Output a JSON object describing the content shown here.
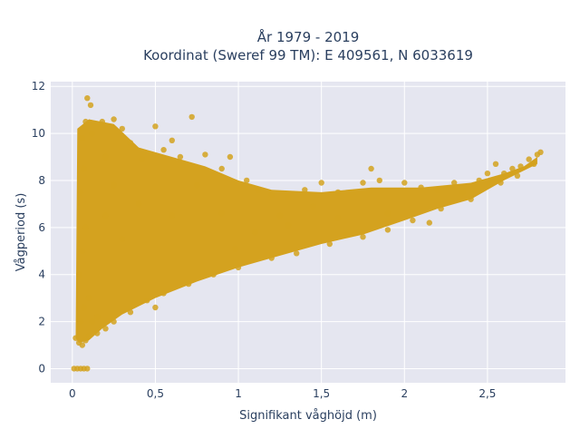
{
  "chart_data": {
    "type": "scatter",
    "title_line1": "År 1979 - 2019",
    "title_line2": "Koordinat (Sweref 99 TM): E 409561, N 6033619",
    "xlabel": "Signifikant våghöjd (m)",
    "ylabel": "Vågperiod (s)",
    "xlim": [
      -0.13,
      2.97
    ],
    "ylim": [
      -0.6,
      12.2
    ],
    "grid": true,
    "x_ticks": [
      {
        "value": 0,
        "label": "0"
      },
      {
        "value": 0.5,
        "label": "0,5"
      },
      {
        "value": 1,
        "label": "1"
      },
      {
        "value": 1.5,
        "label": "1,5"
      },
      {
        "value": 2,
        "label": "2"
      },
      {
        "value": 2.5,
        "label": "2,5"
      }
    ],
    "y_ticks": [
      {
        "value": 0,
        "label": "0"
      },
      {
        "value": 2,
        "label": "2"
      },
      {
        "value": 4,
        "label": "4"
      },
      {
        "value": 6,
        "label": "6"
      },
      {
        "value": 8,
        "label": "8"
      },
      {
        "value": 10,
        "label": "10"
      },
      {
        "value": 12,
        "label": "12"
      }
    ],
    "marker_color": "#d4a21f",
    "plot_background": "#e5e6f0",
    "series": [
      {
        "points": [
          [
            0.01,
            0
          ],
          [
            0.03,
            0
          ],
          [
            0.05,
            0
          ],
          [
            0.07,
            0
          ],
          [
            0.09,
            0
          ],
          [
            0.02,
            1.3
          ],
          [
            0.04,
            1.1
          ],
          [
            0.06,
            1.0
          ],
          [
            0.08,
            1.2
          ],
          [
            0.1,
            1.4
          ],
          [
            0.05,
            2.0
          ],
          [
            0.07,
            2.6
          ],
          [
            0.1,
            3.0
          ],
          [
            0.12,
            2.0
          ],
          [
            0.15,
            2.2
          ],
          [
            0.04,
            4.0
          ],
          [
            0.06,
            5.0
          ],
          [
            0.08,
            6.0
          ],
          [
            0.05,
            7.5
          ],
          [
            0.07,
            8.5
          ],
          [
            0.06,
            9.8
          ],
          [
            0.08,
            10.5
          ],
          [
            0.09,
            11.5
          ],
          [
            0.11,
            11.2
          ],
          [
            0.12,
            10.0
          ],
          [
            0.18,
            10.5
          ],
          [
            0.25,
            10.6
          ],
          [
            0.2,
            9.0
          ],
          [
            0.3,
            10.2
          ],
          [
            0.35,
            9.6
          ],
          [
            0.42,
            8.9
          ],
          [
            0.55,
            9.3
          ],
          [
            0.5,
            10.3
          ],
          [
            0.6,
            9.7
          ],
          [
            0.72,
            10.7
          ],
          [
            0.65,
            9.0
          ],
          [
            0.8,
            9.1
          ],
          [
            0.9,
            8.5
          ],
          [
            0.95,
            9.0
          ],
          [
            1.05,
            8.0
          ],
          [
            1.12,
            7.6
          ],
          [
            1.2,
            7.4
          ],
          [
            1.3,
            7.3
          ],
          [
            1.4,
            7.6
          ],
          [
            1.5,
            7.9
          ],
          [
            1.6,
            7.5
          ],
          [
            1.75,
            7.9
          ],
          [
            1.85,
            8.0
          ],
          [
            2.0,
            7.9
          ],
          [
            2.1,
            7.7
          ],
          [
            2.2,
            7.6
          ],
          [
            2.3,
            7.9
          ],
          [
            2.35,
            7.5
          ],
          [
            2.45,
            8.0
          ],
          [
            2.5,
            8.3
          ],
          [
            2.55,
            8.7
          ],
          [
            2.6,
            8.3
          ],
          [
            2.65,
            8.5
          ],
          [
            2.7,
            8.6
          ],
          [
            2.75,
            8.9
          ],
          [
            2.8,
            9.1
          ],
          [
            2.82,
            9.2
          ],
          [
            2.78,
            8.7
          ],
          [
            2.68,
            8.2
          ],
          [
            2.58,
            7.9
          ],
          [
            2.4,
            7.2
          ],
          [
            2.22,
            6.8
          ],
          [
            2.05,
            6.3
          ],
          [
            1.9,
            5.9
          ],
          [
            1.75,
            5.6
          ],
          [
            1.55,
            5.3
          ],
          [
            1.35,
            4.9
          ],
          [
            1.2,
            4.7
          ],
          [
            1.0,
            4.3
          ],
          [
            0.85,
            4.0
          ],
          [
            0.7,
            3.6
          ],
          [
            0.55,
            3.2
          ],
          [
            0.45,
            2.9
          ],
          [
            0.35,
            2.4
          ],
          [
            0.25,
            2.0
          ],
          [
            0.2,
            1.7
          ],
          [
            0.15,
            1.5
          ],
          [
            0.5,
            2.6
          ],
          [
            0.98,
            5.1
          ],
          [
            1.3,
            6.1
          ],
          [
            1.6,
            6.4
          ],
          [
            1.9,
            6.6
          ],
          [
            2.15,
            6.2
          ],
          [
            1.65,
            5.7
          ],
          [
            1.8,
            8.5
          ],
          [
            1.45,
            6.9
          ],
          [
            0.3,
            5.5
          ],
          [
            0.2,
            6.5
          ],
          [
            0.25,
            7.8
          ],
          [
            0.4,
            7.0
          ],
          [
            0.6,
            6.5
          ],
          [
            0.75,
            7.8
          ],
          [
            0.9,
            6.6
          ],
          [
            1.1,
            5.8
          ],
          [
            1.25,
            6.5
          ]
        ]
      }
    ]
  }
}
